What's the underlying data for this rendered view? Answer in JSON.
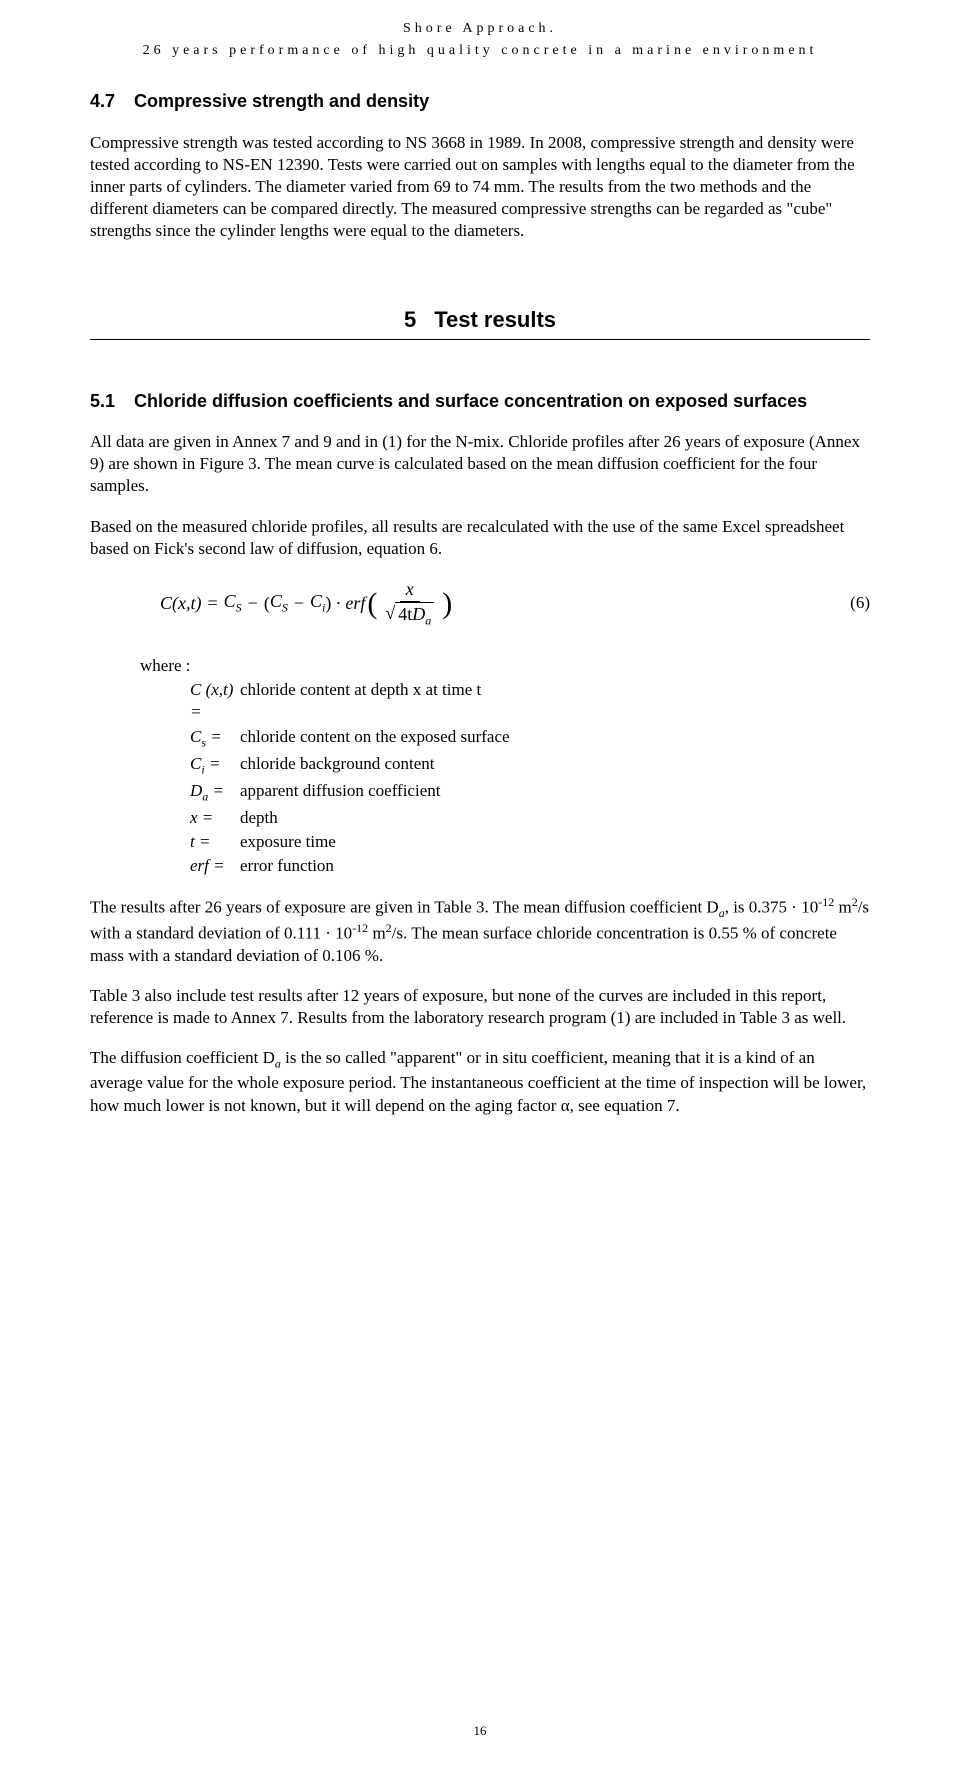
{
  "header": {
    "title": "Shore Approach.",
    "subtitle": "26 years performance of high quality concrete in a marine environment"
  },
  "section47": {
    "number": "4.7",
    "title": "Compressive strength and density",
    "para1": "Compressive strength was tested according to NS 3668 in 1989. In 2008, compressive strength and density were tested according to NS-EN 12390. Tests were carried out on samples with lengths equal to the diameter from the inner parts of cylinders. The diameter varied from 69 to 74 mm. The results from the two methods and the different diameters can be compared directly. The measured compressive strengths can be regarded as \"cube\" strengths since the cylinder lengths were equal to the diameters."
  },
  "section5": {
    "number": "5",
    "title": "Test results"
  },
  "section51": {
    "number": "5.1",
    "title": "Chloride diffusion coefficients and surface concentration on exposed surfaces",
    "para1": "All data are given in Annex 7 and 9 and in (1) for the N-mix. Chloride profiles after 26 years of exposure (Annex 9) are shown in Figure 3. The mean curve is calculated based on the mean diffusion coefficient for the four samples.",
    "para2": "Based on the measured chloride profiles, all results are recalculated with the use of the same Excel spreadsheet based on Fick's second law of diffusion, equation 6."
  },
  "equation": {
    "lhs": "C(x,t)",
    "eq": "=",
    "cs": "C",
    "cs_sub": "S",
    "minus1": "−",
    "open_par": "(",
    "cs2": "C",
    "cs2_sub": "S",
    "minus2": "−",
    "ci": "C",
    "ci_sub": "i",
    "close_par": ")",
    "dot": "·",
    "erf": "erf",
    "frac_top": "x",
    "frac_bot_4t": "4t",
    "frac_bot_d": "D",
    "frac_bot_d_sub": "a",
    "number": "(6)"
  },
  "where": {
    "label": "where :",
    "rows": [
      {
        "sym": "C (x,t) =",
        "def": "chloride content at depth x at time t"
      },
      {
        "sym": "C",
        "sub": "s",
        "post": " =",
        "def": "chloride content on the exposed surface"
      },
      {
        "sym": "C",
        "sub": "i",
        "post": " =",
        "def": "chloride background content"
      },
      {
        "sym": "D",
        "sub": "a",
        "post": " =",
        "def": "apparent diffusion coefficient"
      },
      {
        "sym": "x =",
        "def": "depth"
      },
      {
        "sym": "t =",
        "def": "exposure time"
      },
      {
        "sym": "erf =",
        "def": "error function"
      }
    ]
  },
  "results": {
    "para1_pre": "The results after 26 years of exposure are given in Table 3. The mean diffusion coefficient D",
    "para1_sub1": "a",
    "para1_mid1": ", is 0.375 · 10",
    "para1_sup1": "-12",
    "para1_mid2": " m",
    "para1_sup2": "2",
    "para1_mid3": "/s with a standard deviation of 0.111 · 10",
    "para1_sup3": "-12",
    "para1_mid4": " m",
    "para1_sup4": "2",
    "para1_mid5": "/s. The mean surface chloride concentration is 0.55 % of concrete mass with a standard deviation of 0.106 %.",
    "para2": "Table 3 also include test results after 12 years of exposure, but none of the curves are included in this report, reference is made to Annex 7. Results from the laboratory research program (1) are included in Table 3 as well.",
    "para3_pre": "The diffusion coefficient D",
    "para3_sub": "a",
    "para3_post": " is the so called \"apparent\" or in situ coefficient, meaning that it is a kind of an average value for the whole exposure period. The instantaneous coefficient at the time of inspection will be lower, how much lower is not known, but it will depend on the aging factor α, see equation 7."
  },
  "page_number": "16"
}
